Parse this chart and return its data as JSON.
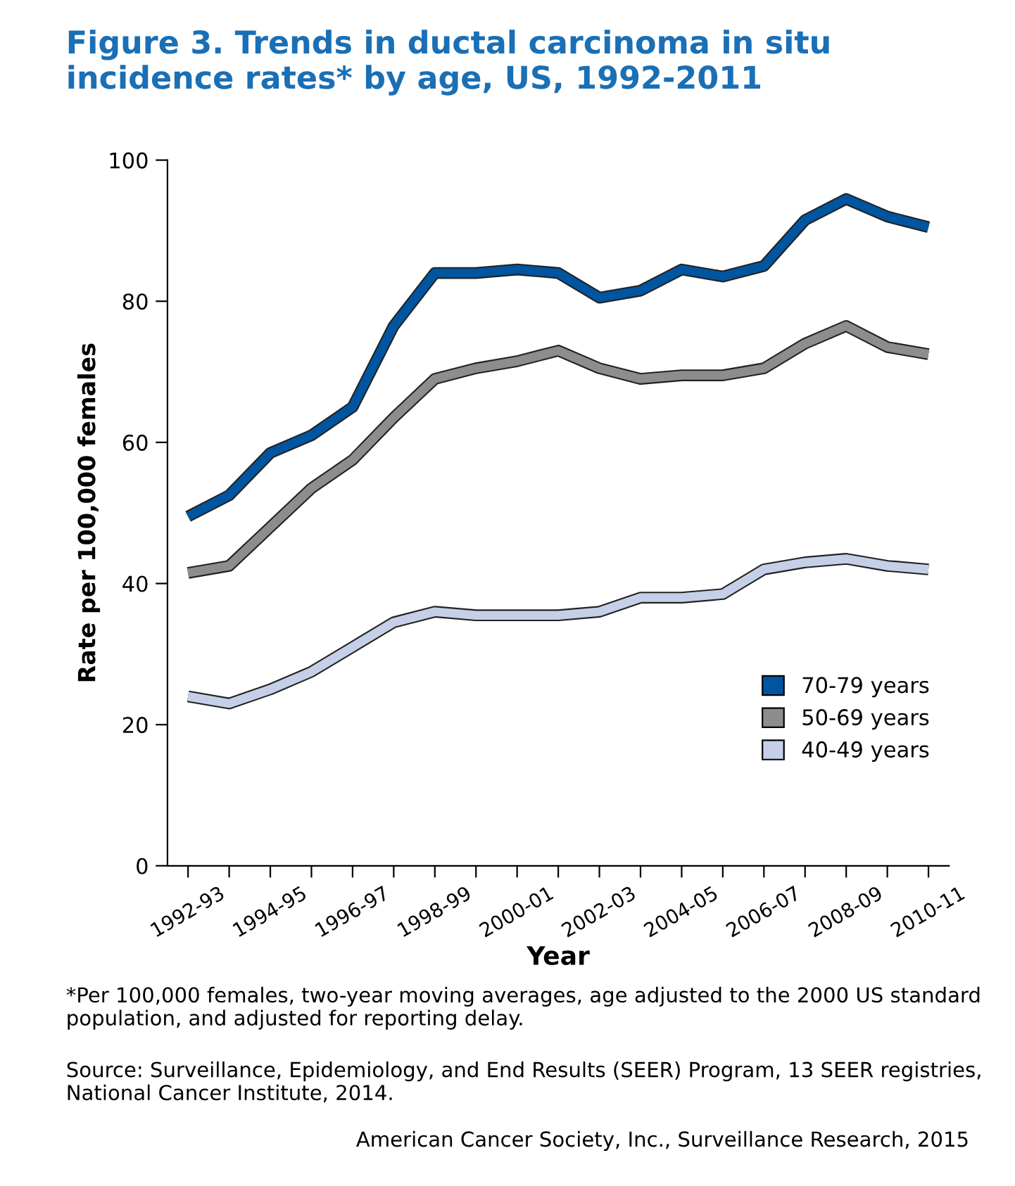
{
  "chart_data": {
    "type": "line",
    "title": "Figure 3. Trends in ductal carcinoma in situ\nincidence rates* by age, US, 1992-2011",
    "xlabel": "Year",
    "ylabel": "Rate per 100,000 females",
    "categories": [
      "1992-93",
      null,
      "1994-95",
      null,
      "1996-97",
      null,
      "1998-99",
      null,
      "2000-01",
      null,
      "2002-03",
      null,
      "2004-05",
      null,
      "2006-07",
      null,
      "2008-09",
      null,
      "2010-11"
    ],
    "series": [
      {
        "name": "70-79 years",
        "color": "#0055a0",
        "values": [
          49.5,
          52.5,
          58.5,
          61,
          65,
          76.5,
          84,
          84,
          84.5,
          84,
          80.5,
          81.5,
          84.5,
          83.5,
          85,
          91.5,
          94.5,
          92,
          90.5
        ]
      },
      {
        "name": "50-69 years",
        "color": "#8c8d8f",
        "values": [
          41.5,
          42.5,
          48,
          53.5,
          57.5,
          63.5,
          69,
          70.5,
          71.5,
          73,
          70.5,
          69,
          69.5,
          69.5,
          70.5,
          74,
          76.5,
          73.5,
          72.5
        ]
      },
      {
        "name": "40-49 years",
        "color": "#c5d0e8",
        "values": [
          24,
          23,
          25,
          27.5,
          31,
          34.5,
          36,
          35.5,
          35.5,
          35.5,
          36,
          38,
          38,
          38.5,
          42,
          43,
          43.5,
          42.5,
          42
        ]
      }
    ],
    "ylim": [
      0,
      100
    ],
    "yticks": [
      0,
      20,
      40,
      60,
      80,
      100
    ],
    "grid": false,
    "legend": "lower right",
    "marker": "none",
    "line_style": "solid",
    "annotations": [
      "*Per 100,000 females, two-year moving averages, age adjusted to the 2000 US standard population, and adjusted for reporting delay.",
      "Source: Surveillance, Epidemiology, and End Results (SEER) Program, 13 SEER registries, National Cancer Institute, 2014.",
      "American Cancer Society, Inc., Surveillance Research, 2015"
    ]
  }
}
